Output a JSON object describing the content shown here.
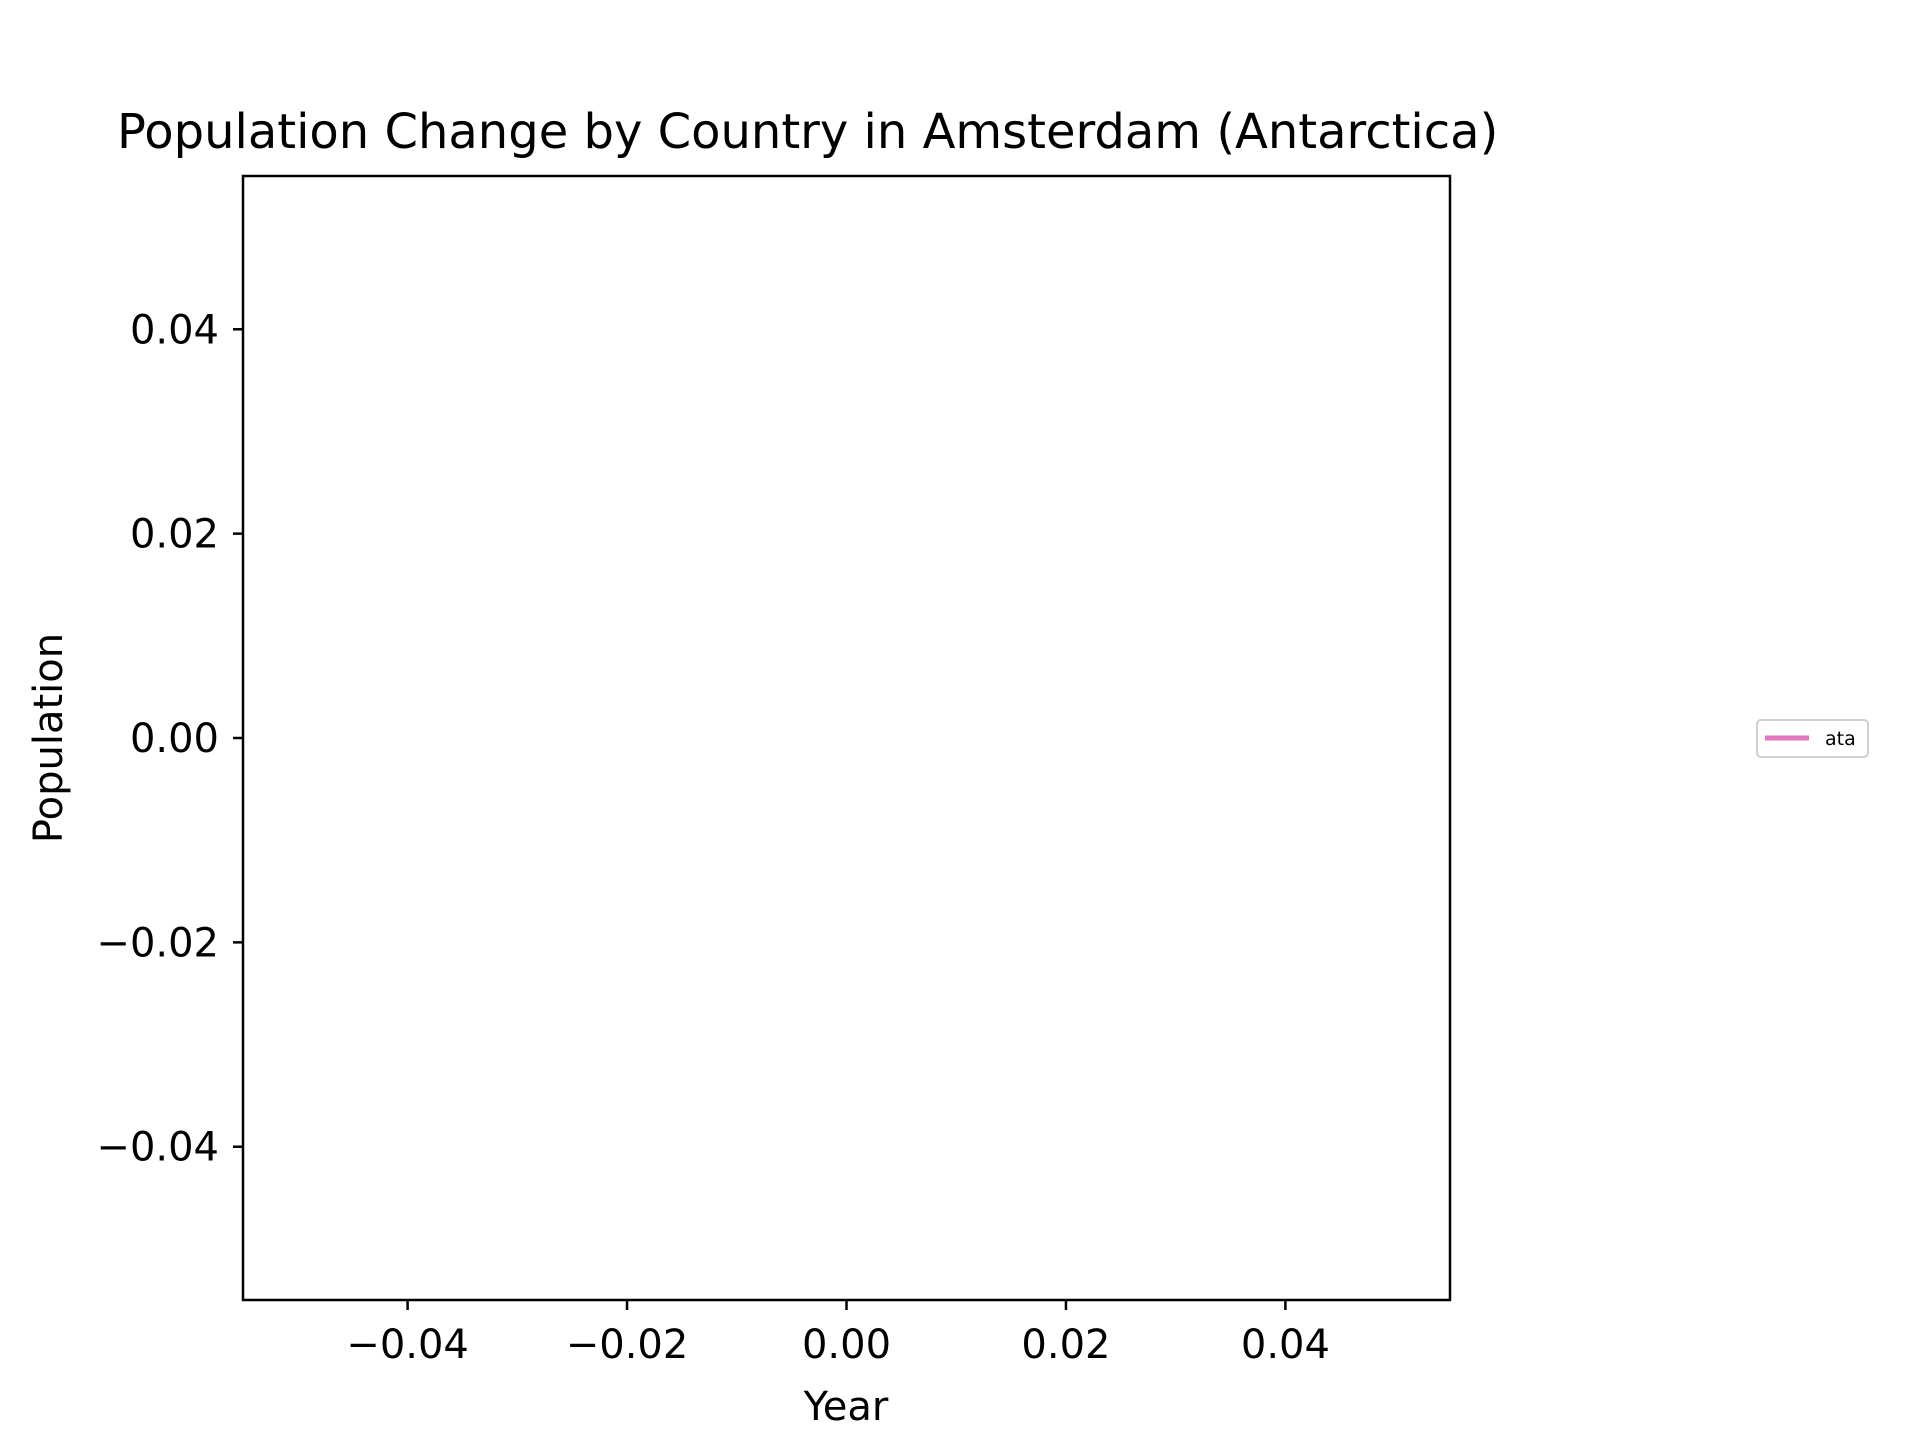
{
  "chart_data": {
    "type": "line",
    "title": "Population Change by Country in Amsterdam (Antarctica)",
    "xlabel": "Year",
    "ylabel": "Population",
    "xlim": [
      -0.055,
      0.055
    ],
    "ylim": [
      -0.055,
      0.055
    ],
    "x_ticks": [
      -0.04,
      -0.02,
      0.0,
      0.02,
      0.04
    ],
    "x_tick_labels": [
      "−0.04",
      "−0.02",
      "0.00",
      "0.02",
      "0.04"
    ],
    "y_ticks": [
      -0.04,
      -0.02,
      0.0,
      0.02,
      0.04
    ],
    "y_tick_labels": [
      "−0.04",
      "−0.02",
      "0.00",
      "0.02",
      "0.04"
    ],
    "grid": false,
    "legend_position": "right, outside plot",
    "series": [
      {
        "name": "ata",
        "color": "#e377c2",
        "x": [],
        "y": []
      }
    ]
  }
}
